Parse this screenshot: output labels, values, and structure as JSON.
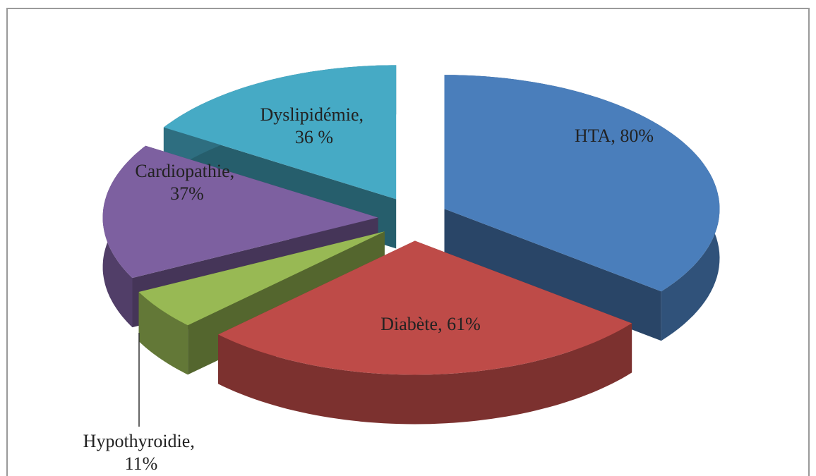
{
  "chart_data": {
    "type": "pie3d",
    "values": [
      80,
      61,
      11,
      37,
      36
    ],
    "value_labels": [
      "HTA, 80%",
      "Diabète, 61%",
      "Hypothyroidie, 11%",
      "Cardiopathie, 37%",
      "Dyslipidémie, 36 %"
    ],
    "colors": [
      "#4a7ebb",
      "#be4b48",
      "#98b954",
      "#7d60a0",
      "#46aac5"
    ]
  }
}
